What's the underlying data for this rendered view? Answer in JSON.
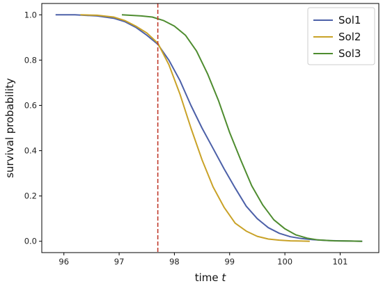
{
  "chart_data": {
    "type": "line",
    "xlabel": "time",
    "xlabel_var": "t",
    "ylabel": "survival probability",
    "xlim": [
      95.6,
      101.7
    ],
    "ylim": [
      -0.05,
      1.05
    ],
    "x_ticks": [
      96,
      97,
      98,
      99,
      100,
      101
    ],
    "y_ticks": [
      0.0,
      0.2,
      0.4,
      0.6,
      0.8,
      1.0
    ],
    "x_tick_labels": [
      "96",
      "97",
      "98",
      "99",
      "100",
      "101"
    ],
    "y_tick_labels": [
      "0.0",
      "0.2",
      "0.4",
      "0.6",
      "0.8",
      "1.0"
    ],
    "grid": false,
    "legend_position": "top-right",
    "vline": {
      "x": 97.7,
      "color": "#c0392b",
      "style": "dashed"
    },
    "series": [
      {
        "name": "Sol1",
        "color": "#4c60a8",
        "x": [
          95.85,
          96.2,
          96.6,
          96.9,
          97.1,
          97.3,
          97.5,
          97.7,
          97.9,
          98.1,
          98.3,
          98.5,
          98.7,
          98.9,
          99.1,
          99.3,
          99.5,
          99.7,
          99.9,
          100.1,
          100.3,
          100.5,
          100.8,
          101.0,
          101.2,
          101.4
        ],
        "y": [
          1.0,
          1.0,
          0.995,
          0.985,
          0.97,
          0.945,
          0.91,
          0.87,
          0.8,
          0.71,
          0.6,
          0.5,
          0.41,
          0.32,
          0.235,
          0.155,
          0.1,
          0.06,
          0.035,
          0.02,
          0.012,
          0.007,
          0.003,
          0.002,
          0.001,
          0.0
        ]
      },
      {
        "name": "Sol2",
        "color": "#c9a227",
        "x": [
          96.3,
          96.6,
          96.9,
          97.1,
          97.3,
          97.5,
          97.7,
          97.9,
          98.1,
          98.3,
          98.5,
          98.7,
          98.9,
          99.1,
          99.3,
          99.5,
          99.7,
          99.9,
          100.1,
          100.3,
          100.45
        ],
        "y": [
          1.0,
          0.998,
          0.99,
          0.975,
          0.95,
          0.92,
          0.875,
          0.78,
          0.65,
          0.5,
          0.36,
          0.24,
          0.15,
          0.08,
          0.045,
          0.022,
          0.01,
          0.005,
          0.002,
          0.001,
          0.0
        ]
      },
      {
        "name": "Sol3",
        "color": "#4e8c2f",
        "x": [
          97.05,
          97.4,
          97.6,
          97.8,
          98.0,
          98.2,
          98.4,
          98.6,
          98.8,
          99.0,
          99.2,
          99.4,
          99.6,
          99.8,
          100.0,
          100.2,
          100.4,
          100.6,
          100.9,
          101.2,
          101.4
        ],
        "y": [
          1.0,
          0.995,
          0.99,
          0.975,
          0.95,
          0.91,
          0.84,
          0.74,
          0.62,
          0.48,
          0.36,
          0.245,
          0.16,
          0.095,
          0.055,
          0.028,
          0.014,
          0.006,
          0.002,
          0.001,
          0.0
        ]
      }
    ]
  }
}
